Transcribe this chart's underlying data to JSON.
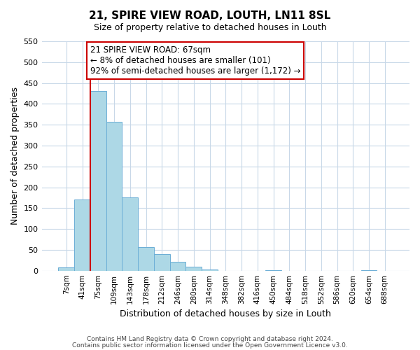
{
  "title": "21, SPIRE VIEW ROAD, LOUTH, LN11 8SL",
  "subtitle": "Size of property relative to detached houses in Louth",
  "xlabel": "Distribution of detached houses by size in Louth",
  "ylabel": "Number of detached properties",
  "bar_labels": [
    "7sqm",
    "41sqm",
    "75sqm",
    "109sqm",
    "143sqm",
    "178sqm",
    "212sqm",
    "246sqm",
    "280sqm",
    "314sqm",
    "348sqm",
    "382sqm",
    "416sqm",
    "450sqm",
    "484sqm",
    "518sqm",
    "552sqm",
    "586sqm",
    "620sqm",
    "654sqm",
    "688sqm"
  ],
  "bar_values": [
    8,
    170,
    430,
    357,
    175,
    57,
    40,
    22,
    10,
    2,
    0,
    0,
    0,
    1,
    0,
    0,
    0,
    0,
    0,
    1,
    0
  ],
  "bar_color": "#add8e6",
  "bar_edgecolor": "#6baed6",
  "vline_x": 1,
  "vline_color": "#cc0000",
  "annotation_text": "21 SPIRE VIEW ROAD: 67sqm\n← 8% of detached houses are smaller (101)\n92% of semi-detached houses are larger (1,172) →",
  "annotation_box_color": "#ffffff",
  "annotation_box_edgecolor": "#cc0000",
  "ylim": [
    0,
    550
  ],
  "yticks": [
    0,
    50,
    100,
    150,
    200,
    250,
    300,
    350,
    400,
    450,
    500,
    550
  ],
  "footer1": "Contains HM Land Registry data © Crown copyright and database right 2024.",
  "footer2": "Contains public sector information licensed under the Open Government Licence v3.0.",
  "background_color": "#ffffff",
  "grid_color": "#c8d8e8"
}
